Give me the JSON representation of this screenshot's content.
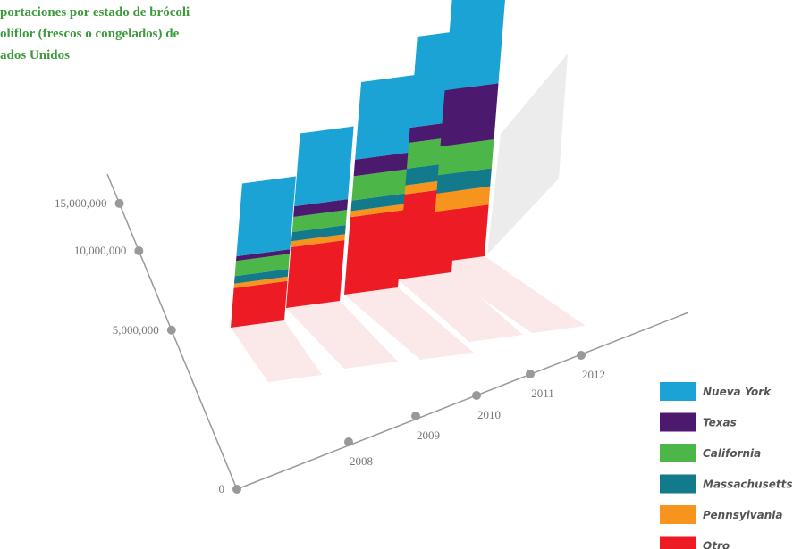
{
  "chart_data": {
    "type": "stacked_bar_3d",
    "title": [
      "portaciones por estado de brócoli",
      "oliflor (frescos o congelados) de",
      "ados Unidos"
    ],
    "categories": [
      "2008",
      "2009",
      "2010",
      "2011",
      "2012"
    ],
    "series": [
      {
        "name": "Nueva York",
        "color": "#1ba3d6",
        "values": [
          4800000,
          4800000,
          5100000,
          6000000,
          6100000
        ]
      },
      {
        "name": "Texas",
        "color": "#4b1a6e",
        "values": [
          300000,
          700000,
          1100000,
          1000000,
          3700000
        ]
      },
      {
        "name": "California",
        "color": "#4cb648",
        "values": [
          1000000,
          1000000,
          1600000,
          1700000,
          1900000
        ]
      },
      {
        "name": "Massachusetts",
        "color": "#137a8c",
        "values": [
          500000,
          600000,
          700000,
          1100000,
          1200000
        ]
      },
      {
        "name": "Pennsylvania",
        "color": "#f7941d",
        "values": [
          300000,
          400000,
          400000,
          600000,
          1200000
        ]
      },
      {
        "name": "Otro",
        "color": "#ed1c24",
        "values": [
          2600000,
          4000000,
          5100000,
          5600000,
          3400000
        ]
      }
    ],
    "ylim": [
      0,
      16000000
    ],
    "yticks": [
      0,
      {
        "value": 5000000,
        "label": "5,000,000"
      },
      {
        "value": 10000000,
        "label": "10,000,000"
      },
      {
        "value": 15000000,
        "label": "15,000,000"
      }
    ],
    "legend": "bottom-right"
  }
}
